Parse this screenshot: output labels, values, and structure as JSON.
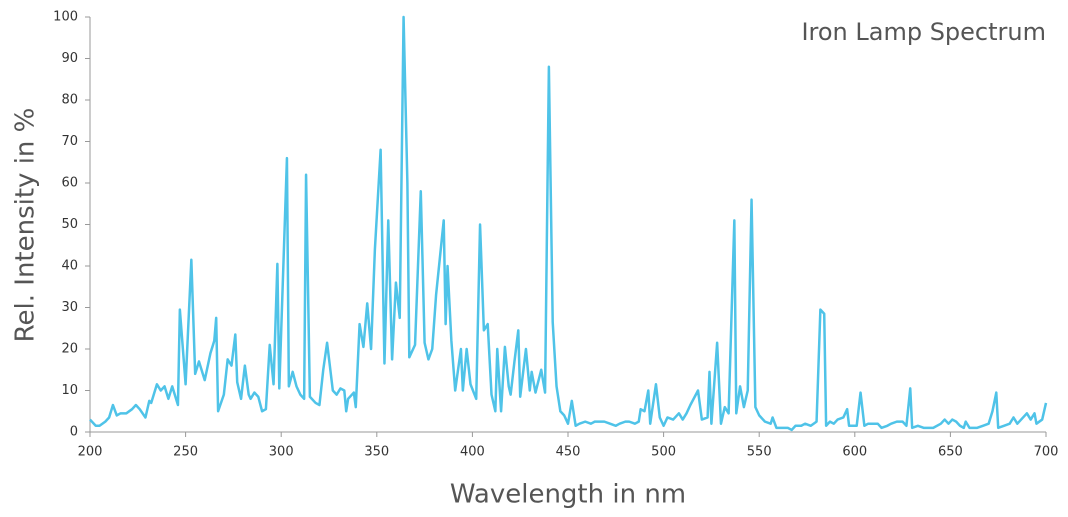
{
  "chart_data": {
    "type": "line",
    "title": "Iron Lamp Spectrum",
    "x_label": "Wavelength in nm",
    "y_label": "Rel. Intensity in %",
    "color": "#4fc3e8",
    "x": [
      200,
      203,
      205,
      208,
      210,
      212,
      214,
      216,
      219,
      222,
      224,
      226,
      229,
      231,
      232,
      235,
      237,
      239,
      241,
      243,
      246,
      247,
      250,
      253,
      255,
      257,
      260,
      263,
      265,
      266,
      267,
      270,
      272,
      274,
      276,
      277,
      279,
      281,
      283,
      284,
      286,
      288,
      290,
      292,
      294,
      296,
      298,
      299,
      303,
      304,
      306,
      308,
      310,
      312,
      313,
      315,
      318,
      320,
      322,
      324,
      327,
      329,
      331,
      333,
      334,
      335,
      338,
      339,
      341,
      343,
      345,
      347,
      349,
      352,
      354,
      356,
      358,
      360,
      362,
      364,
      366,
      367,
      370,
      373,
      375,
      377,
      379,
      381,
      385,
      386,
      387,
      389,
      391,
      394,
      395,
      397,
      399,
      402,
      404,
      406,
      408,
      410,
      412,
      413,
      415,
      417,
      419,
      420,
      422,
      424,
      425,
      428,
      430,
      431,
      433,
      436,
      438,
      440,
      442,
      444,
      446,
      448,
      450,
      452,
      454,
      456,
      459,
      462,
      464,
      467,
      469,
      472,
      475,
      477,
      480,
      482,
      485,
      487,
      488,
      490,
      492,
      493,
      496,
      498,
      500,
      502,
      505,
      508,
      510,
      512,
      514,
      518,
      520,
      523,
      524,
      525,
      528,
      530,
      532,
      534,
      537,
      538,
      540,
      542,
      544,
      546,
      548,
      550,
      553,
      556,
      557,
      559,
      562,
      565,
      567,
      569,
      572,
      574,
      577,
      580,
      582,
      584,
      585,
      587,
      589,
      591,
      594,
      596,
      597,
      601,
      603,
      605,
      607,
      610,
      612,
      614,
      617,
      619,
      622,
      625,
      627,
      629,
      630,
      633,
      636,
      639,
      641,
      645,
      647,
      649,
      651,
      653,
      655,
      657,
      658,
      660,
      662,
      664,
      667,
      670,
      672,
      674,
      675,
      678,
      681,
      683,
      685,
      687,
      690,
      692,
      694,
      695,
      698,
      700
    ],
    "values": [
      3,
      1.5,
      1.5,
      2.5,
      3.5,
      6.5,
      4,
      4.5,
      4.5,
      5.5,
      6.5,
      5.5,
      3.5,
      7.5,
      7,
      11.5,
      10,
      11,
      8,
      11,
      6.5,
      29.5,
      11.5,
      41.5,
      14,
      17,
      12.5,
      19,
      22,
      27.5,
      5,
      9,
      17.5,
      16,
      23.5,
      12,
      8,
      16,
      9,
      8,
      9.5,
      8.5,
      5,
      5.5,
      21,
      11.5,
      40.5,
      10.5,
      66,
      11,
      14.5,
      11,
      9,
      8,
      62,
      8.5,
      7,
      6.5,
      15,
      21.5,
      10,
      9,
      10.5,
      10,
      5,
      8,
      9.5,
      6,
      26,
      20.5,
      31,
      20,
      44,
      68,
      16.5,
      51,
      17.5,
      36,
      27.5,
      100,
      60,
      18,
      21,
      58,
      21.5,
      17.5,
      20,
      33,
      51,
      26,
      40,
      22,
      10,
      20,
      10,
      20,
      11.5,
      8,
      50,
      24.5,
      26,
      9,
      5,
      20,
      5,
      20.5,
      11,
      9,
      17,
      24.5,
      8.5,
      20,
      10,
      14.5,
      9.5,
      15,
      9.5,
      88,
      26.5,
      11,
      5,
      4,
      2,
      7.5,
      1.5,
      2,
      2.5,
      2,
      2.5,
      2.5,
      2.5,
      2,
      1.5,
      2,
      2.5,
      2.5,
      2,
      2.5,
      5.5,
      5,
      10,
      2,
      11.5,
      3.5,
      1.5,
      3.5,
      3,
      4.5,
      3,
      4.5,
      6.5,
      10,
      3,
      3.5,
      14.5,
      2,
      21.5,
      2,
      6,
      4.5,
      51,
      4.5,
      11,
      6,
      10,
      56,
      6,
      4,
      2.5,
      2,
      3.5,
      1,
      1,
      1,
      0.5,
      1.5,
      1.5,
      2,
      1.5,
      2.5,
      29.5,
      28.5,
      1.5,
      2.5,
      2,
      3,
      3.5,
      5.5,
      1.5,
      1.5,
      9.5,
      1.5,
      2,
      2,
      2,
      1,
      1.5,
      2,
      2.5,
      2.5,
      1.5,
      10.5,
      1,
      1.5,
      1,
      1,
      1,
      2,
      3,
      2,
      3,
      2.5,
      1.5,
      1,
      2.5,
      1,
      1,
      1,
      1.5,
      2,
      5,
      9.5,
      1,
      1.5,
      2,
      3.5,
      2,
      3,
      4.5,
      3,
      4.5,
      2,
      3,
      7
    ],
    "xlim": [
      200,
      700
    ],
    "xticks": [
      200,
      250,
      300,
      350,
      400,
      450,
      500,
      550,
      600,
      650,
      700
    ],
    "ylim": [
      0,
      100
    ],
    "yticks": [
      0,
      10,
      20,
      30,
      40,
      50,
      60,
      70,
      80,
      90,
      100
    ]
  }
}
